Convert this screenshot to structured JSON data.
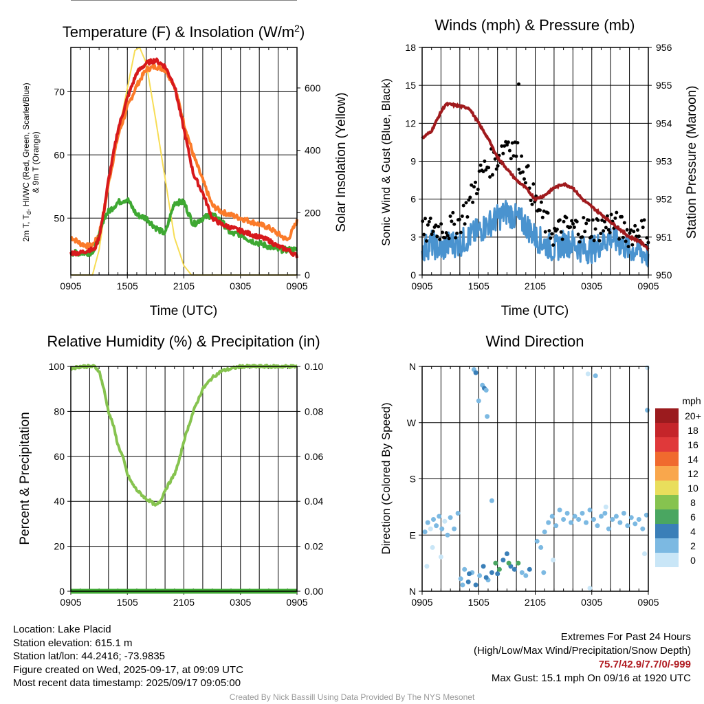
{
  "colors": {
    "temp_red": "#d7191c",
    "dewpoint_green": "#3ea832",
    "temp_9m_orange": "#fb7b2a",
    "solar_yellow": "#f7dd55",
    "wind_blue": "#4a93cf",
    "gust_black": "#000000",
    "pressure_maroon": "#a01a1d",
    "rh_green": "#86c34f",
    "precip_green": "#3ea832",
    "extremes_red": "#b01c22"
  },
  "chart_data": [
    {
      "type": "line",
      "title": "Temperature (F) & Insolation (W/m²)",
      "xlabel": "Time (UTC)",
      "ylabel": "2m T, Td, HI/WC (Red, Green, Scarlet/Blue) & 9m T (Orange)",
      "y2label": "Solar Insolation (Yellow)",
      "x_ticks": [
        "0905",
        "1505",
        "2105",
        "0305",
        "0905"
      ],
      "x_range_hours": [
        0,
        24
      ],
      "ylim": [
        41,
        77
      ],
      "y_ticks": [
        50,
        60,
        70
      ],
      "y2lim": [
        0,
        730
      ],
      "y2_ticks": [
        0,
        200,
        400,
        600
      ],
      "grid": true,
      "series": [
        {
          "name": "2m T",
          "color": "#d7191c",
          "axis": "left",
          "x": [
            0,
            1,
            2,
            2.5,
            3,
            3.5,
            4,
            5,
            6,
            7,
            8,
            9,
            10,
            11,
            12,
            13,
            14,
            15,
            16,
            17,
            18,
            19,
            20,
            21,
            22,
            23,
            24
          ],
          "y": [
            44.5,
            44.5,
            45,
            45,
            47,
            51,
            56,
            64,
            69,
            73,
            74.5,
            75,
            74,
            71,
            64,
            57,
            54,
            50,
            49,
            48.5,
            48,
            47.5,
            47,
            46.5,
            45.5,
            45,
            44
          ]
        },
        {
          "name": "9m T",
          "color": "#fb7b2a",
          "axis": "left",
          "x": [
            0,
            1,
            2,
            2.5,
            3,
            3.5,
            4,
            5,
            6,
            7,
            8,
            9,
            10,
            11,
            12,
            13,
            14,
            15,
            16,
            17,
            18,
            19,
            20,
            21,
            22,
            23,
            24
          ],
          "y": [
            47,
            46,
            45.5,
            46,
            47.5,
            51,
            55.5,
            63,
            67.5,
            71,
            73.5,
            74,
            73.5,
            71,
            65,
            60,
            56,
            52,
            51,
            50.5,
            50,
            49.5,
            49,
            48.5,
            47.5,
            46.5,
            49.5
          ]
        },
        {
          "name": "2m Td",
          "color": "#3ea832",
          "axis": "left",
          "x": [
            0,
            1,
            2,
            2.5,
            3,
            3.5,
            4,
            5,
            6,
            7,
            8,
            9,
            10,
            11,
            12,
            13,
            14,
            15,
            16,
            17,
            18,
            19,
            20,
            21,
            22,
            23,
            24
          ],
          "y": [
            44.5,
            44.5,
            44.5,
            45,
            47,
            50,
            51,
            52.5,
            53,
            50.5,
            50,
            48.5,
            47.5,
            52.5,
            52.5,
            49,
            50,
            50.5,
            49.5,
            47.5,
            47.5,
            46.5,
            46,
            45.5,
            45,
            45,
            45
          ]
        },
        {
          "name": "Solar Insolation",
          "color": "#f7dd55",
          "axis": "right",
          "x": [
            0,
            1.8,
            2.3,
            3,
            4,
            5,
            6,
            6.8,
            7.3,
            8,
            9,
            10,
            11,
            12,
            12.8,
            13,
            24
          ],
          "y": [
            0,
            0,
            0,
            80,
            280,
            450,
            600,
            720,
            730,
            680,
            500,
            310,
            120,
            30,
            0,
            0,
            0
          ]
        }
      ]
    },
    {
      "type": "scatter",
      "title": "Winds (mph) & Pressure (mb)",
      "xlabel": "Time (UTC)",
      "ylabel": "Sonic Wind & Gust (Blue, Black)",
      "y2label": "Station Pressure (Maroon)",
      "x_ticks": [
        "0905",
        "1505",
        "2105",
        "0305",
        "0905"
      ],
      "x_range_hours": [
        0,
        24
      ],
      "ylim": [
        0,
        18
      ],
      "y_ticks": [
        0,
        3,
        6,
        9,
        12,
        15,
        18
      ],
      "y2lim": [
        950,
        956
      ],
      "y2_ticks": [
        950,
        951,
        952,
        953,
        954,
        955,
        956
      ],
      "grid": true,
      "series": [
        {
          "name": "Sonic Wind",
          "color": "#4a93cf",
          "axis": "left",
          "x": [
            0,
            1,
            2,
            3,
            4,
            5,
            6,
            7,
            8,
            9,
            10,
            11,
            12,
            13,
            14,
            15,
            16,
            17,
            18,
            19,
            20,
            21,
            22,
            23,
            24
          ],
          "y": [
            2,
            2.5,
            2,
            2.5,
            2.5,
            3,
            3.5,
            4,
            4.5,
            5,
            4.5,
            4,
            3,
            2.5,
            2,
            2.5,
            2.5,
            2,
            2,
            2.5,
            3,
            2.5,
            2,
            2,
            1.5
          ]
        },
        {
          "name": "Gust",
          "color": "#000000",
          "axis": "left",
          "x": [
            0,
            1,
            2,
            3,
            4,
            5,
            6,
            7,
            8,
            9,
            10,
            11,
            12,
            13,
            14,
            15,
            16,
            17,
            18,
            19,
            20,
            21,
            22,
            23,
            24
          ],
          "y": [
            3,
            3.5,
            3.5,
            3.5,
            4,
            5.5,
            7.5,
            8.5,
            9,
            10.5,
            9.5,
            8,
            5.5,
            4,
            3,
            3.5,
            3.5,
            3.5,
            3.5,
            3.5,
            4,
            3.5,
            3,
            3.5,
            3
          ]
        },
        {
          "name": "Station Pressure",
          "color": "#a01a1d",
          "axis": "right",
          "x": [
            0,
            0.5,
            1,
            2,
            2.5,
            3,
            4,
            5,
            5.5,
            6,
            7,
            8,
            9,
            10,
            11,
            12,
            13,
            14,
            15,
            16,
            17,
            18,
            19,
            20,
            21,
            22,
            23,
            24
          ],
          "y": [
            953.6,
            953.7,
            953.8,
            954.3,
            954.5,
            954.5,
            954.45,
            954.4,
            954.2,
            954.0,
            953.6,
            953.1,
            952.8,
            952.5,
            952.3,
            952.0,
            952.1,
            952.3,
            952.4,
            952.3,
            952.0,
            951.8,
            951.6,
            951.4,
            951.2,
            951.0,
            950.9,
            950.7
          ]
        }
      ]
    },
    {
      "type": "line",
      "title": "Relative Humidity (%) & Precipitation (in)",
      "xlabel": "",
      "ylabel": "Percent & Precipitation",
      "x_ticks": [
        "0905",
        "1505",
        "2105",
        "0305",
        "0905"
      ],
      "x_range_hours": [
        0,
        24
      ],
      "ylim": [
        0,
        100
      ],
      "y_ticks": [
        0,
        20,
        40,
        60,
        80,
        100
      ],
      "y2lim": [
        0,
        0.1
      ],
      "y2_ticks": [
        "0.00",
        "0.02",
        "0.04",
        "0.06",
        "0.08",
        "0.10"
      ],
      "grid": true,
      "series": [
        {
          "name": "Relative Humidity",
          "color": "#86c34f",
          "axis": "left",
          "x": [
            0,
            1,
            2,
            2.5,
            3,
            3.5,
            4,
            4.5,
            5,
            5.5,
            6,
            6.5,
            7,
            8,
            8.5,
            9,
            9.5,
            10,
            11,
            11.5,
            12,
            13,
            14,
            15,
            16,
            17,
            18,
            19,
            20,
            21,
            22,
            23,
            24
          ],
          "y": [
            99,
            100,
            100,
            100,
            98,
            90,
            80,
            74,
            65,
            60,
            52,
            48,
            45,
            41,
            40,
            38,
            40,
            45,
            52,
            58,
            67,
            80,
            90,
            95,
            98,
            99,
            100,
            100,
            100,
            100,
            100,
            100,
            100
          ]
        },
        {
          "name": "Precipitation",
          "color": "#3ea832",
          "axis": "right",
          "x": [
            0,
            24
          ],
          "y": [
            0,
            0
          ]
        }
      ]
    },
    {
      "type": "scatter",
      "title": "Wind Direction",
      "xlabel": "",
      "ylabel": "Direction (Colored By Speed)",
      "x_ticks": [
        "0905",
        "1505",
        "2105",
        "0305",
        "0905"
      ],
      "x_range_hours": [
        0,
        24
      ],
      "y_ticks": [
        "N",
        "E",
        "S",
        "W",
        "N"
      ],
      "ylim": [
        0,
        360
      ],
      "grid": true,
      "legend": {
        "title": "mph",
        "position": "right",
        "labels": [
          "20+",
          "18",
          "16",
          "14",
          "12",
          "10",
          "8",
          "6",
          "4",
          "2",
          "0"
        ],
        "colors": [
          "#9b1b1e",
          "#c5252a",
          "#e0393a",
          "#f06a2e",
          "#f9a74c",
          "#e9de5c",
          "#86c34f",
          "#4aa661",
          "#3a7fb8",
          "#7cb9e2",
          "#c9e6f7"
        ]
      },
      "points": [
        {
          "x": 0.3,
          "dir": 95,
          "speed": 2
        },
        {
          "x": 0.6,
          "dir": 110,
          "speed": 2
        },
        {
          "x": 0.9,
          "dir": 100,
          "speed": 1
        },
        {
          "x": 1.2,
          "dir": 115,
          "speed": 2
        },
        {
          "x": 1.5,
          "dir": 105,
          "speed": 2
        },
        {
          "x": 1.8,
          "dir": 120,
          "speed": 2
        },
        {
          "x": 2.1,
          "dir": 100,
          "speed": 2
        },
        {
          "x": 2.4,
          "dir": 112,
          "speed": 1
        },
        {
          "x": 2.7,
          "dir": 90,
          "speed": 2
        },
        {
          "x": 3.0,
          "dir": 118,
          "speed": 2
        },
        {
          "x": 3.4,
          "dir": 100,
          "speed": 2
        },
        {
          "x": 3.8,
          "dir": 125,
          "speed": 2
        },
        {
          "x": 0.5,
          "dir": 40,
          "speed": 0
        },
        {
          "x": 2.0,
          "dir": 55,
          "speed": 1
        },
        {
          "x": 1.1,
          "dir": 70,
          "speed": 1
        },
        {
          "x": 4.1,
          "dir": 20,
          "speed": 3
        },
        {
          "x": 4.5,
          "dir": 35,
          "speed": 3
        },
        {
          "x": 4.9,
          "dir": 15,
          "speed": 4
        },
        {
          "x": 5.3,
          "dir": 30,
          "speed": 3
        },
        {
          "x": 5.7,
          "dir": 10,
          "speed": 4
        },
        {
          "x": 6.1,
          "dir": 25,
          "speed": 3
        },
        {
          "x": 6.5,
          "dir": 40,
          "speed": 4
        },
        {
          "x": 7.0,
          "dir": 18,
          "speed": 3
        },
        {
          "x": 7.4,
          "dir": 30,
          "speed": 5
        },
        {
          "x": 7.8,
          "dir": 45,
          "speed": 6
        },
        {
          "x": 8.2,
          "dir": 35,
          "speed": 6
        },
        {
          "x": 8.6,
          "dir": 50,
          "speed": 5
        },
        {
          "x": 9.0,
          "dir": 60,
          "speed": 4
        },
        {
          "x": 9.4,
          "dir": 40,
          "speed": 5
        },
        {
          "x": 9.8,
          "dir": 35,
          "speed": 4
        },
        {
          "x": 10.2,
          "dir": 45,
          "speed": 6
        },
        {
          "x": 10.6,
          "dir": 30,
          "speed": 3
        },
        {
          "x": 11.0,
          "dir": 25,
          "speed": 3
        },
        {
          "x": 11.4,
          "dir": 35,
          "speed": 4
        },
        {
          "x": 4.3,
          "dir": 10,
          "speed": 3
        },
        {
          "x": 5.0,
          "dir": 28,
          "speed": 4
        },
        {
          "x": 6.8,
          "dir": 22,
          "speed": 4
        },
        {
          "x": 8.0,
          "dir": 28,
          "speed": 5
        },
        {
          "x": 9.2,
          "dir": 45,
          "speed": 6
        },
        {
          "x": 5.5,
          "dir": 355,
          "speed": 3
        },
        {
          "x": 5.7,
          "dir": 350,
          "speed": 4
        },
        {
          "x": 6.4,
          "dir": 330,
          "speed": 3
        },
        {
          "x": 6.6,
          "dir": 325,
          "speed": 4
        },
        {
          "x": 6.8,
          "dir": 322,
          "speed": 3
        },
        {
          "x": 6.0,
          "dir": 305,
          "speed": 2
        },
        {
          "x": 6.9,
          "dir": 280,
          "speed": 3
        },
        {
          "x": 7.4,
          "dir": 145,
          "speed": 3
        },
        {
          "x": 12.2,
          "dir": 80,
          "speed": 2
        },
        {
          "x": 12.6,
          "dir": 70,
          "speed": 2
        },
        {
          "x": 13.0,
          "dir": 95,
          "speed": 2
        },
        {
          "x": 13.4,
          "dir": 110,
          "speed": 2
        },
        {
          "x": 13.8,
          "dir": 120,
          "speed": 2
        },
        {
          "x": 14.2,
          "dir": 105,
          "speed": 2
        },
        {
          "x": 14.6,
          "dir": 130,
          "speed": 2
        },
        {
          "x": 15.0,
          "dir": 115,
          "speed": 2
        },
        {
          "x": 15.4,
          "dir": 125,
          "speed": 2
        },
        {
          "x": 15.8,
          "dir": 110,
          "speed": 2
        },
        {
          "x": 16.2,
          "dir": 120,
          "speed": 3
        },
        {
          "x": 16.6,
          "dir": 115,
          "speed": 2
        },
        {
          "x": 17.0,
          "dir": 125,
          "speed": 2
        },
        {
          "x": 17.4,
          "dir": 110,
          "speed": 2
        },
        {
          "x": 17.8,
          "dir": 130,
          "speed": 2
        },
        {
          "x": 18.2,
          "dir": 115,
          "speed": 2
        },
        {
          "x": 18.6,
          "dir": 105,
          "speed": 2
        },
        {
          "x": 19.0,
          "dir": 120,
          "speed": 2
        },
        {
          "x": 19.4,
          "dir": 125,
          "speed": 2
        },
        {
          "x": 19.8,
          "dir": 100,
          "speed": 2
        },
        {
          "x": 20.2,
          "dir": 115,
          "speed": 2
        },
        {
          "x": 20.6,
          "dir": 120,
          "speed": 2
        },
        {
          "x": 21.0,
          "dir": 110,
          "speed": 2
        },
        {
          "x": 21.4,
          "dir": 125,
          "speed": 2
        },
        {
          "x": 21.8,
          "dir": 105,
          "speed": 2
        },
        {
          "x": 22.2,
          "dir": 118,
          "speed": 2
        },
        {
          "x": 22.6,
          "dir": 108,
          "speed": 2
        },
        {
          "x": 23.0,
          "dir": 115,
          "speed": 2
        },
        {
          "x": 23.4,
          "dir": 100,
          "speed": 2
        },
        {
          "x": 23.8,
          "dir": 122,
          "speed": 2
        },
        {
          "x": 17.8,
          "dir": 5,
          "speed": 1
        },
        {
          "x": 12.9,
          "dir": 30,
          "speed": 2
        },
        {
          "x": 13.9,
          "dir": 50,
          "speed": 1
        },
        {
          "x": 23.6,
          "dir": 60,
          "speed": 0
        },
        {
          "x": 19.5,
          "dir": 135,
          "speed": 1
        },
        {
          "x": 17.6,
          "dir": 348,
          "speed": 1
        },
        {
          "x": 18.4,
          "dir": 345,
          "speed": 2
        },
        {
          "x": 23.9,
          "dir": 358,
          "speed": 1
        },
        {
          "x": 23.9,
          "dir": 290,
          "speed": 2
        }
      ]
    }
  ],
  "footer": {
    "location": "Location: Lake Placid",
    "elevation": "Station elevation: 615.1 m",
    "latlon": "Station lat/lon: 44.2416; -73.9835",
    "created": "Figure created on Wed, 2025-09-17, at 09:09 UTC",
    "recent": "Most recent data timestamp: 2025/09/17 09:05:00",
    "extremes_title": "Extremes For Past 24 Hours",
    "extremes_desc": "(High/Low/Max Wind/Precipitation/Snow Depth)",
    "extremes_values": "75.7/42.9/7.7/0/-999",
    "max_gust": "Max Gust: 15.1 mph On 09/16 at 1920 UTC",
    "credit": "Created By Nick Bassill Using Data Provided By The NYS Mesonet"
  }
}
